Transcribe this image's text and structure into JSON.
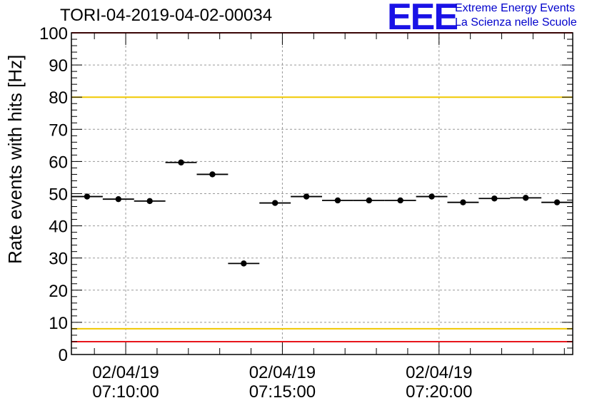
{
  "title": "TORI-04-2019-04-02-00034",
  "logo": {
    "mark": "EEE",
    "line1": "Extreme Energy Events",
    "line2": "La Scienza nelle Scuole",
    "color": "#1a12e6"
  },
  "chart_data": {
    "type": "scatter",
    "title": "TORI-04-2019-04-02-00034",
    "ylabel": "Rate events with hits [Hz]",
    "xlabel": "",
    "ylim": [
      0,
      100
    ],
    "yticks": [
      0,
      10,
      20,
      30,
      40,
      50,
      60,
      70,
      80,
      90,
      100
    ],
    "xlim": [
      "02/04/19 07:08:16",
      "02/04/19 07:24:16"
    ],
    "xticks": [
      {
        "date": "02/04/19",
        "time": "07:10:00",
        "t": "07:10:00"
      },
      {
        "date": "02/04/19",
        "time": "07:15:00",
        "t": "07:15:00"
      },
      {
        "date": "02/04/19",
        "time": "07:20:00",
        "t": "07:20:00"
      }
    ],
    "grid": true,
    "reference_lines": [
      {
        "y": 80,
        "color": "#f0c800"
      },
      {
        "y": 8,
        "color": "#f0c800"
      },
      {
        "y": 100,
        "color": "#e8151b"
      },
      {
        "y": 4,
        "color": "#e8151b"
      }
    ],
    "series": [
      {
        "marker_color": "#000000",
        "points": [
          {
            "x": "07:08:46",
            "y": 49.1
          },
          {
            "x": "07:09:46",
            "y": 48.3
          },
          {
            "x": "07:10:46",
            "y": 47.7
          },
          {
            "x": "07:11:46",
            "y": 59.7
          },
          {
            "x": "07:12:46",
            "y": 56.0
          },
          {
            "x": "07:13:46",
            "y": 28.3
          },
          {
            "x": "07:14:46",
            "y": 47.1
          },
          {
            "x": "07:15:46",
            "y": 49.1
          },
          {
            "x": "07:16:46",
            "y": 47.9
          },
          {
            "x": "07:17:46",
            "y": 47.9
          },
          {
            "x": "07:18:46",
            "y": 47.9
          },
          {
            "x": "07:19:46",
            "y": 49.1
          },
          {
            "x": "07:20:46",
            "y": 47.3
          },
          {
            "x": "07:21:46",
            "y": 48.5
          },
          {
            "x": "07:22:46",
            "y": 48.7
          },
          {
            "x": "07:23:46",
            "y": 47.3
          }
        ]
      }
    ]
  }
}
